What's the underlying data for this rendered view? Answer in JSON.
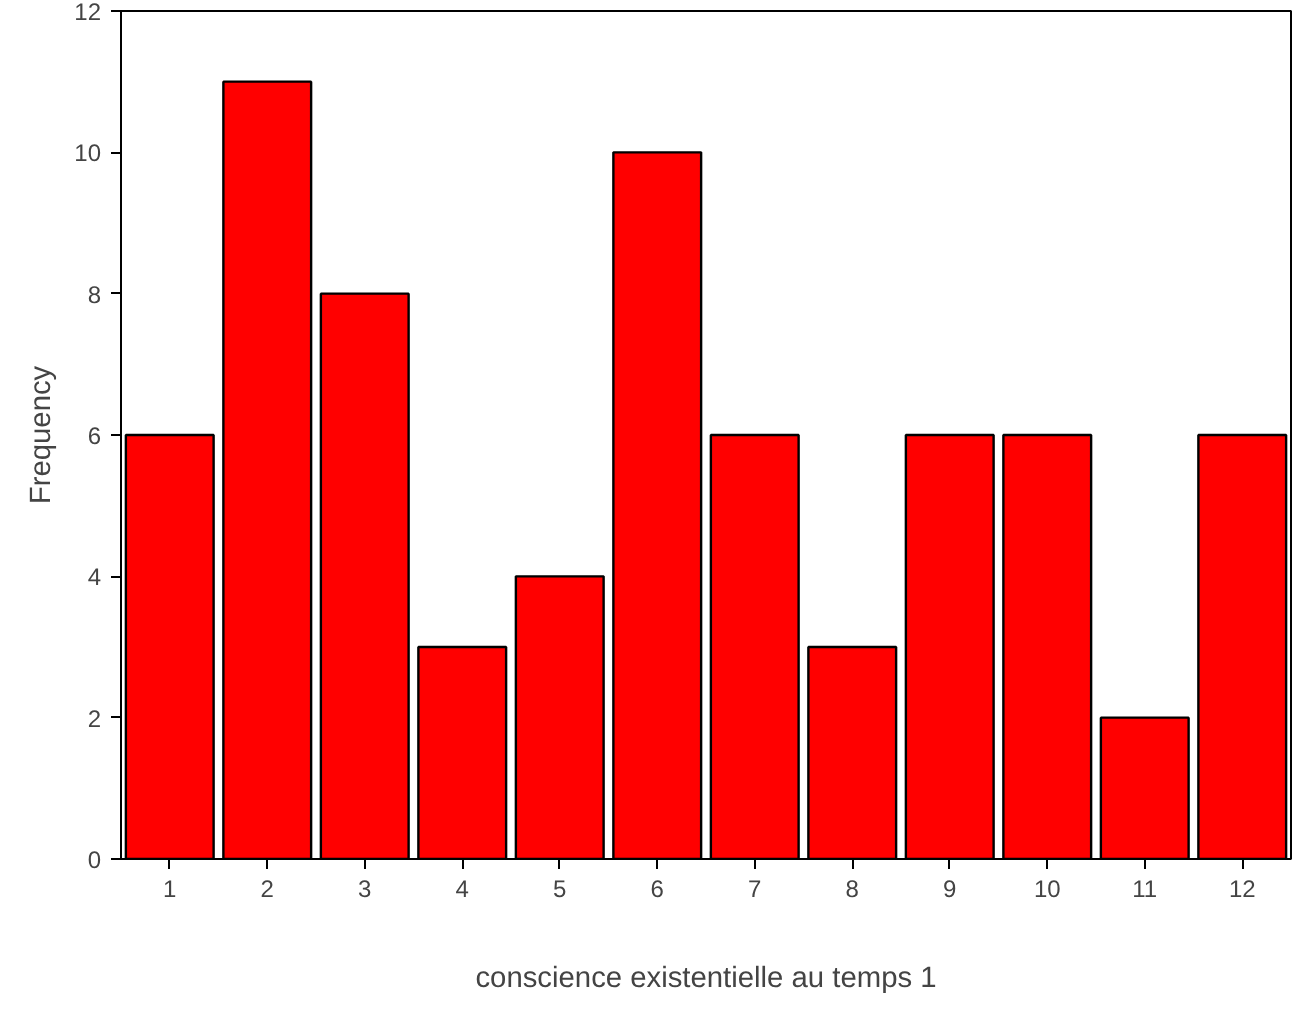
{
  "chart_data": {
    "type": "bar",
    "xlabel": "conscience existentielle au temps 1",
    "ylabel": "Frequency",
    "x": [
      1,
      2,
      3,
      4,
      5,
      6,
      7,
      8,
      9,
      10,
      11,
      12
    ],
    "values": [
      6,
      11,
      8,
      3,
      4,
      10,
      6,
      3,
      6,
      6,
      2,
      6
    ],
    "color": "#ff0000",
    "xlim": [
      0.5,
      12.5
    ],
    "xticks": [
      1,
      2,
      3,
      4,
      5,
      6,
      7,
      8,
      9,
      10,
      11,
      12
    ],
    "ylim": [
      0,
      12
    ],
    "yticks": [
      0,
      2,
      4,
      6,
      8,
      10,
      12
    ],
    "grid": false,
    "legend": false
  }
}
